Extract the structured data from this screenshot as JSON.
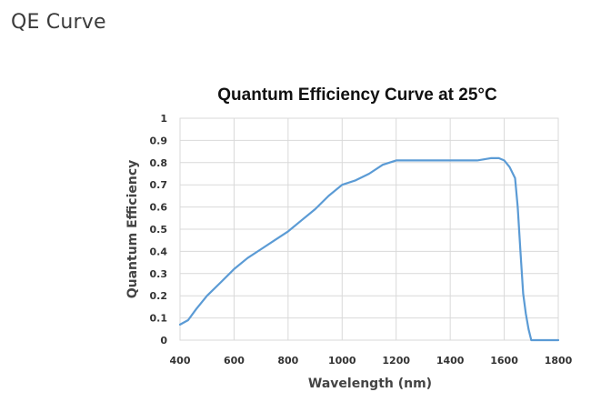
{
  "page": {
    "heading": "QE Curve"
  },
  "chart_data": {
    "type": "line",
    "title": "Quantum Efficiency Curve at 25°C",
    "xlabel": "Wavelength (nm)",
    "ylabel": "Quantum Efficiency",
    "xlim": [
      400,
      1800
    ],
    "ylim": [
      0,
      1
    ],
    "xticks": [
      400,
      600,
      800,
      1000,
      1200,
      1400,
      1600,
      1800
    ],
    "yticks": [
      0,
      0.1,
      0.2,
      0.3,
      0.4,
      0.5,
      0.6,
      0.7,
      0.8,
      0.9,
      1
    ],
    "xtick_labels": [
      "400",
      "600",
      "800",
      "1000",
      "1200",
      "1400",
      "1600",
      "1800"
    ],
    "ytick_labels": [
      "0",
      "0.1",
      "0.2",
      "0.3",
      "0.4",
      "0.5",
      "0.6",
      "0.7",
      "0.8",
      "0.9",
      "1"
    ],
    "grid": true,
    "legend": "none",
    "line_color": "#5b9bd5",
    "series": [
      {
        "x": [
          400,
          430,
          460,
          500,
          550,
          600,
          650,
          700,
          750,
          800,
          850,
          900,
          950,
          1000,
          1050,
          1100,
          1150,
          1200,
          1250,
          1300,
          1350,
          1400,
          1450,
          1500,
          1550,
          1580,
          1600,
          1620,
          1640,
          1650,
          1660,
          1670,
          1680,
          1690,
          1700,
          1800
        ],
        "y": [
          0.07,
          0.09,
          0.14,
          0.2,
          0.26,
          0.32,
          0.37,
          0.41,
          0.45,
          0.49,
          0.54,
          0.59,
          0.65,
          0.7,
          0.72,
          0.75,
          0.79,
          0.81,
          0.81,
          0.81,
          0.81,
          0.81,
          0.81,
          0.81,
          0.82,
          0.82,
          0.81,
          0.78,
          0.73,
          0.6,
          0.4,
          0.21,
          0.12,
          0.05,
          0.0,
          0.0
        ]
      }
    ]
  }
}
